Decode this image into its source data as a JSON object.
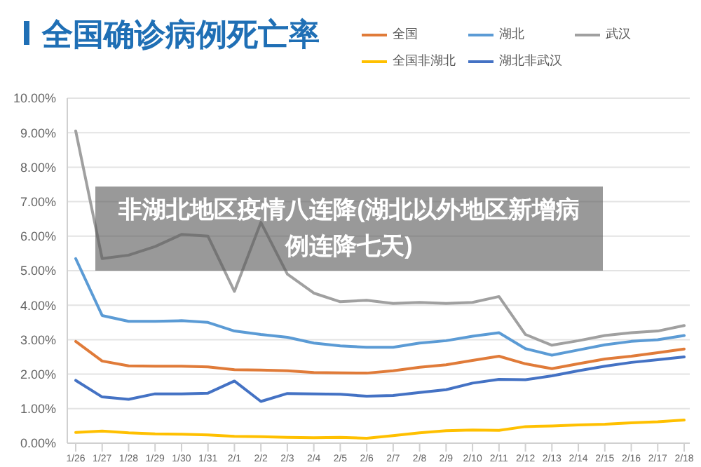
{
  "chart_data": {
    "type": "line",
    "title": "全国确诊病例死亡率",
    "annotations": [
      "非湖北地区疫情八连降(湖北以外地区新增病例连降七天)"
    ],
    "categories": [
      "1/26",
      "1/27",
      "1/28",
      "1/29",
      "1/30",
      "1/31",
      "2/1",
      "2/2",
      "2/3",
      "2/4",
      "2/5",
      "2/6",
      "2/7",
      "2/8",
      "2/9",
      "2/10",
      "2/11",
      "2/12",
      "2/13",
      "2/14",
      "2/15",
      "2/16",
      "2/17",
      "2/18"
    ],
    "series": [
      {
        "name": "全国",
        "color": "#e07b39",
        "values": [
          2.95,
          2.38,
          2.24,
          2.23,
          2.23,
          2.21,
          2.13,
          2.12,
          2.1,
          2.05,
          2.04,
          2.03,
          2.1,
          2.2,
          2.27,
          2.4,
          2.52,
          2.3,
          2.16,
          2.3,
          2.44,
          2.52,
          2.62,
          2.73
        ]
      },
      {
        "name": "湖北",
        "color": "#5b9bd5",
        "values": [
          5.35,
          3.7,
          3.53,
          3.53,
          3.55,
          3.5,
          3.25,
          3.15,
          3.07,
          2.9,
          2.82,
          2.78,
          2.78,
          2.9,
          2.97,
          3.1,
          3.2,
          2.74,
          2.55,
          2.7,
          2.85,
          2.95,
          3.0,
          3.12
        ]
      },
      {
        "name": "武汉",
        "color": "#a0a0a0",
        "values": [
          9.05,
          5.35,
          5.45,
          5.7,
          6.05,
          6.0,
          4.4,
          6.4,
          4.9,
          4.35,
          4.1,
          4.14,
          4.05,
          4.08,
          4.05,
          4.08,
          4.25,
          3.15,
          2.84,
          2.97,
          3.12,
          3.2,
          3.25,
          3.41
        ]
      },
      {
        "name": "全国非湖北",
        "color": "#ffc000",
        "values": [
          0.31,
          0.35,
          0.3,
          0.27,
          0.26,
          0.24,
          0.2,
          0.19,
          0.17,
          0.16,
          0.17,
          0.14,
          0.22,
          0.3,
          0.36,
          0.38,
          0.37,
          0.48,
          0.5,
          0.53,
          0.55,
          0.59,
          0.62,
          0.67
        ]
      },
      {
        "name": "湖北非武汉",
        "color": "#4472c4",
        "values": [
          1.82,
          1.34,
          1.27,
          1.43,
          1.43,
          1.45,
          1.8,
          1.21,
          1.44,
          1.43,
          1.42,
          1.36,
          1.38,
          1.47,
          1.55,
          1.74,
          1.85,
          1.84,
          1.95,
          2.1,
          2.23,
          2.34,
          2.42,
          2.5
        ]
      }
    ],
    "ylim": [
      0,
      10
    ],
    "yticks": [
      {
        "value": 0,
        "label": "0.00%"
      },
      {
        "value": 1,
        "label": "1.00%"
      },
      {
        "value": 2,
        "label": "2.00%"
      },
      {
        "value": 3,
        "label": "3.00%"
      },
      {
        "value": 4,
        "label": "4.00%"
      },
      {
        "value": 5,
        "label": "5.00%"
      },
      {
        "value": 6,
        "label": "6.00%"
      },
      {
        "value": 7,
        "label": "7.00%"
      },
      {
        "value": 8,
        "label": "8.00%"
      },
      {
        "value": 9,
        "label": "9.00%"
      },
      {
        "value": 10,
        "label": "10.00%"
      }
    ],
    "grid": "y",
    "legend": "top right",
    "marker": "none",
    "line_style": "solid"
  }
}
